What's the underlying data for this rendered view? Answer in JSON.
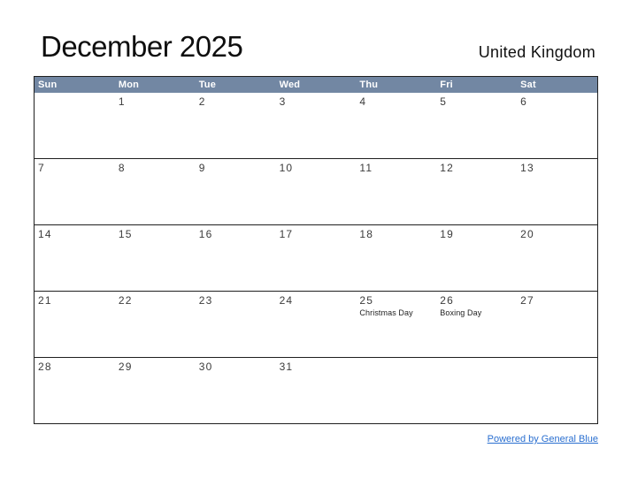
{
  "header": {
    "title": "December 2025",
    "region": "United Kingdom"
  },
  "calendar": {
    "header_bg": "#7287a3",
    "header_text_color": "#ffffff",
    "border_color": "#1f1f1f",
    "day_headers": [
      "Sun",
      "Mon",
      "Tue",
      "Wed",
      "Thu",
      "Fri",
      "Sat"
    ],
    "weeks": [
      [
        {
          "date": ""
        },
        {
          "date": "1"
        },
        {
          "date": "2"
        },
        {
          "date": "3"
        },
        {
          "date": "4"
        },
        {
          "date": "5"
        },
        {
          "date": "6"
        }
      ],
      [
        {
          "date": "7"
        },
        {
          "date": "8"
        },
        {
          "date": "9"
        },
        {
          "date": "10"
        },
        {
          "date": "11"
        },
        {
          "date": "12"
        },
        {
          "date": "13"
        }
      ],
      [
        {
          "date": "14"
        },
        {
          "date": "15"
        },
        {
          "date": "16"
        },
        {
          "date": "17"
        },
        {
          "date": "18"
        },
        {
          "date": "19"
        },
        {
          "date": "20"
        }
      ],
      [
        {
          "date": "21"
        },
        {
          "date": "22"
        },
        {
          "date": "23"
        },
        {
          "date": "24"
        },
        {
          "date": "25",
          "holiday": "Christmas Day"
        },
        {
          "date": "26",
          "holiday": "Boxing Day"
        },
        {
          "date": "27"
        }
      ],
      [
        {
          "date": "28"
        },
        {
          "date": "29"
        },
        {
          "date": "30"
        },
        {
          "date": "31"
        },
        {
          "date": ""
        },
        {
          "date": ""
        },
        {
          "date": ""
        }
      ]
    ]
  },
  "footer": {
    "link_label": "Powered by General Blue",
    "link_color": "#2a6fd0"
  }
}
